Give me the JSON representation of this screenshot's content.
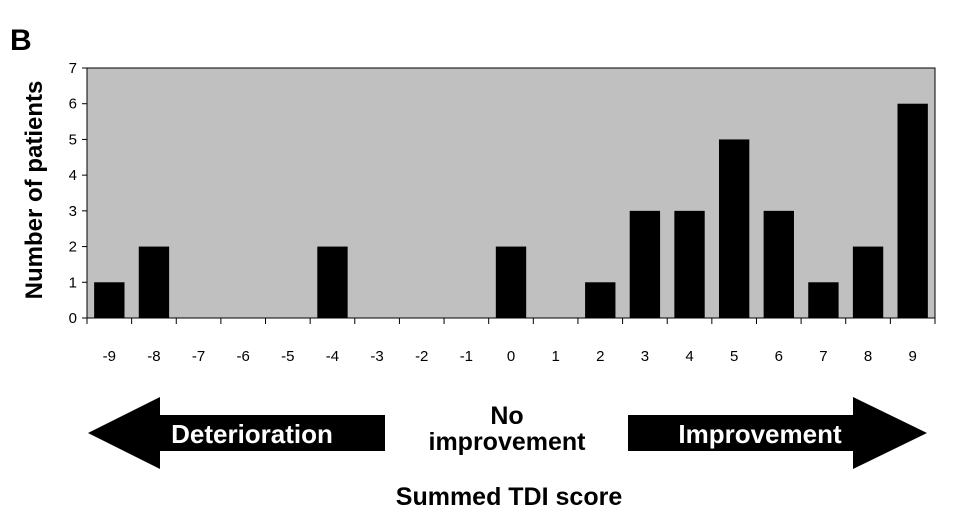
{
  "panel_label": "B",
  "chart_data": {
    "type": "bar",
    "categories": [
      "-9",
      "-8",
      "-7",
      "-6",
      "-5",
      "-4",
      "-3",
      "-2",
      "-1",
      "0",
      "1",
      "2",
      "3",
      "4",
      "5",
      "6",
      "7",
      "8",
      "9"
    ],
    "values": [
      1,
      2,
      0,
      0,
      0,
      2,
      0,
      0,
      0,
      2,
      0,
      1,
      3,
      3,
      5,
      3,
      1,
      2,
      6
    ],
    "ylabel": "Number of patients",
    "xlabel": "Summed TDI score",
    "ylim": [
      0,
      7
    ],
    "yticks": [
      "0",
      "1",
      "2",
      "3",
      "4",
      "5",
      "6",
      "7"
    ],
    "grid": false,
    "plot_background": "#c0c0c0",
    "bar_color": "#000000"
  },
  "annotations": {
    "left_arrow_label": "Deterioration",
    "middle_label_line1": "No",
    "middle_label_line2": "improvement",
    "right_arrow_label": "Improvement"
  }
}
